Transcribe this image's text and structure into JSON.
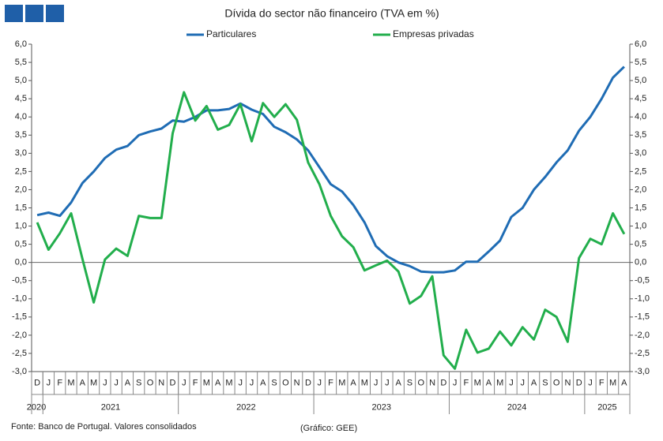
{
  "chart_data": {
    "type": "line",
    "title": "Dívida do sector não financeiro (TVA em %)",
    "source": "Fonte: Banco de Portugal. Valores consolidados",
    "credit": "(Gráfico: GEE)",
    "categories": [
      "D",
      "J",
      "F",
      "M",
      "A",
      "M",
      "J",
      "J",
      "A",
      "S",
      "O",
      "N",
      "D",
      "J",
      "F",
      "M",
      "A",
      "M",
      "J",
      "J",
      "A",
      "S",
      "O",
      "N",
      "D",
      "J",
      "F",
      "M",
      "A",
      "M",
      "J",
      "J",
      "A",
      "S",
      "O",
      "N",
      "D",
      "J",
      "F",
      "M",
      "A",
      "M",
      "J",
      "J",
      "A",
      "S",
      "O",
      "N",
      "D",
      "J",
      "F",
      "M",
      "A"
    ],
    "category_groups": [
      {
        "label": "2020",
        "count": 1
      },
      {
        "label": "2021",
        "count": 12
      },
      {
        "label": "2022",
        "count": 12
      },
      {
        "label": "2023",
        "count": 12
      },
      {
        "label": "2024",
        "count": 12
      },
      {
        "label": "2025",
        "count": 4
      }
    ],
    "series": [
      {
        "name": "Particulares",
        "color": "#1f6cb4",
        "values": [
          1.3,
          1.37,
          1.28,
          1.65,
          2.18,
          2.5,
          2.87,
          3.1,
          3.2,
          3.5,
          3.6,
          3.68,
          3.9,
          3.87,
          4.0,
          4.18,
          4.18,
          4.22,
          4.37,
          4.2,
          4.08,
          3.73,
          3.58,
          3.38,
          3.08,
          2.62,
          2.15,
          1.95,
          1.58,
          1.1,
          0.45,
          0.17,
          0.0,
          -0.1,
          -0.25,
          -0.27,
          -0.27,
          -0.22,
          0.02,
          0.02,
          0.3,
          0.6,
          1.25,
          1.5,
          2.0,
          2.35,
          2.75,
          3.08,
          3.62,
          4.0,
          4.5,
          5.08,
          5.38
        ]
      },
      {
        "name": "Empresas privadas",
        "color": "#22ae4c",
        "values": [
          1.1,
          0.35,
          0.8,
          1.35,
          0.1,
          -1.1,
          0.08,
          0.38,
          0.18,
          1.28,
          1.22,
          1.22,
          3.55,
          4.68,
          3.9,
          4.3,
          3.65,
          3.78,
          4.35,
          3.33,
          4.38,
          4.0,
          4.35,
          3.92,
          2.75,
          2.15,
          1.28,
          0.72,
          0.42,
          -0.22,
          -0.08,
          0.05,
          -0.25,
          -1.13,
          -0.92,
          -0.38,
          -2.55,
          -2.92,
          -1.85,
          -2.48,
          -2.37,
          -1.9,
          -2.28,
          -1.78,
          -2.12,
          -1.3,
          -1.5,
          -2.18,
          0.12,
          0.65,
          0.5,
          1.35,
          0.78
        ]
      }
    ],
    "ylim": [
      -3,
      6
    ],
    "yticks": [
      {
        "value": -3,
        "label": "-3,0"
      },
      {
        "value": -2.5,
        "label": "-2,5"
      },
      {
        "value": -2,
        "label": "-2,0"
      },
      {
        "value": -1.5,
        "label": "-1,5"
      },
      {
        "value": -1,
        "label": "-1,0"
      },
      {
        "value": -0.5,
        "label": "-0,5"
      },
      {
        "value": 0,
        "label": "0,0"
      },
      {
        "value": 0.5,
        "label": "0,5"
      },
      {
        "value": 1,
        "label": "1,0"
      },
      {
        "value": 1.5,
        "label": "1,5"
      },
      {
        "value": 2,
        "label": "2,0"
      },
      {
        "value": 2.5,
        "label": "2,5"
      },
      {
        "value": 3,
        "label": "3,0"
      },
      {
        "value": 3.5,
        "label": "3,5"
      },
      {
        "value": 4,
        "label": "4,0"
      },
      {
        "value": 4.5,
        "label": "4,5"
      },
      {
        "value": 5,
        "label": "5,0"
      },
      {
        "value": 5.5,
        "label": "5,5"
      },
      {
        "value": 6,
        "label": "6,0"
      }
    ],
    "y2lim": [
      -3,
      6
    ],
    "y2ticks": [
      {
        "value": -3,
        "label": "-3,0"
      },
      {
        "value": -2.5,
        "label": "-2,5"
      },
      {
        "value": -2,
        "label": "-2,0"
      },
      {
        "value": -1.5,
        "label": "-1,5"
      },
      {
        "value": -1,
        "label": "-1,0"
      },
      {
        "value": -0.5,
        "label": "-0,5"
      },
      {
        "value": 0,
        "label": "0,0"
      },
      {
        "value": 0.5,
        "label": "0,5"
      },
      {
        "value": 1,
        "label": "1,0"
      },
      {
        "value": 1.5,
        "label": "1,5"
      },
      {
        "value": 2,
        "label": "2,0"
      },
      {
        "value": 2.5,
        "label": "2,5"
      },
      {
        "value": 3,
        "label": "3,0"
      },
      {
        "value": 3.5,
        "label": "3,5"
      },
      {
        "value": 4,
        "label": "4,0"
      },
      {
        "value": 4.5,
        "label": "4,5"
      },
      {
        "value": 5,
        "label": "5,0"
      },
      {
        "value": 5.5,
        "label": "5,5"
      },
      {
        "value": 6,
        "label": "6,0"
      }
    ],
    "grid": false,
    "legend": "top"
  }
}
